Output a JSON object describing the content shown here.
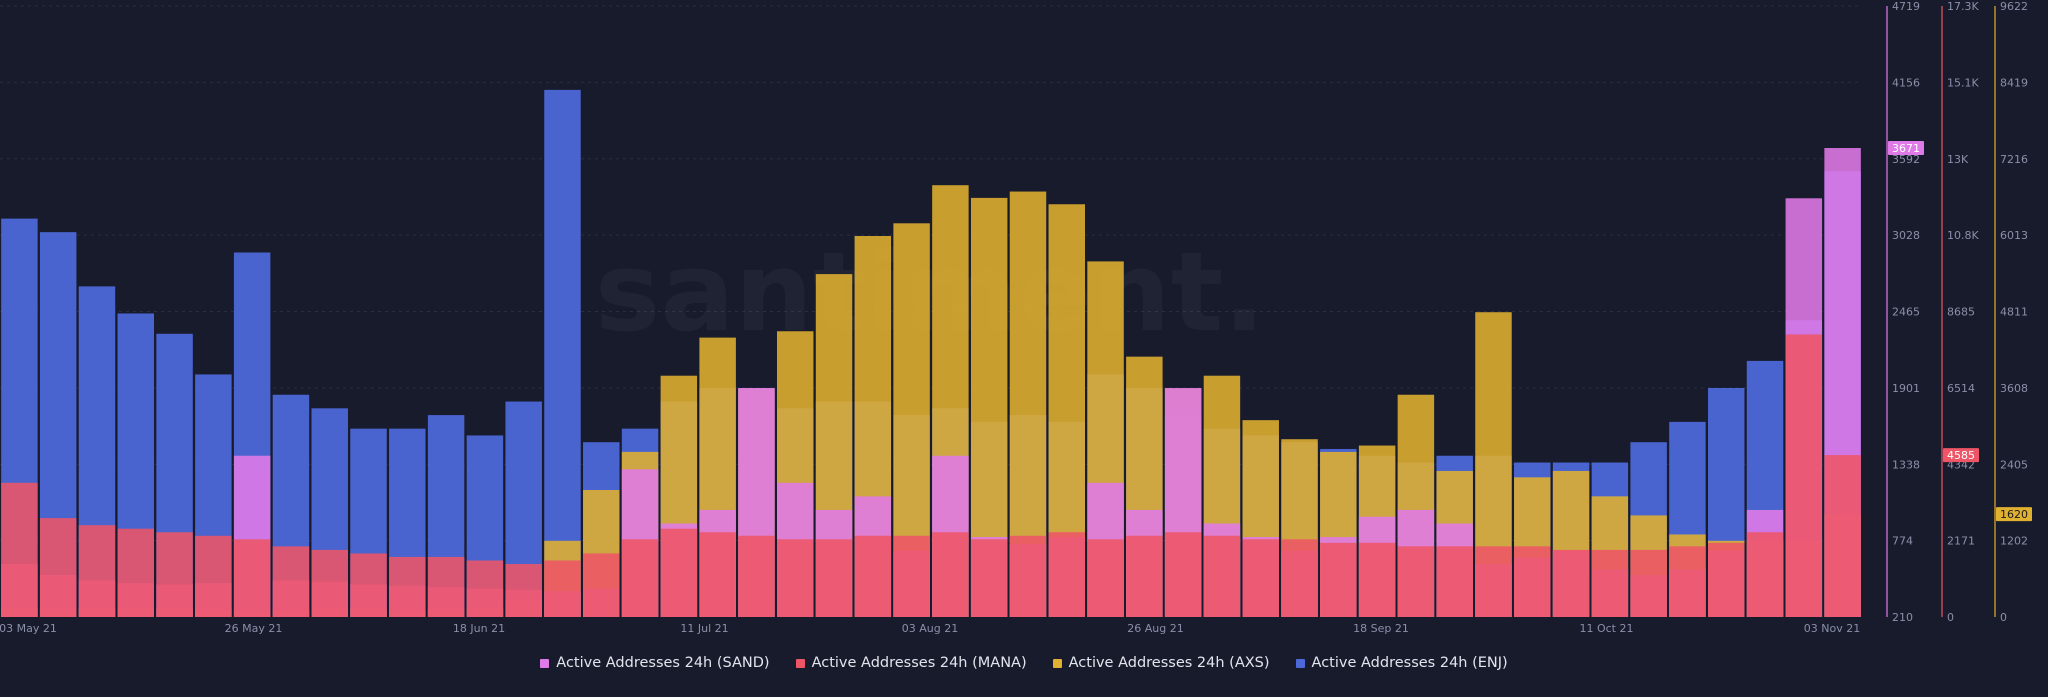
{
  "colors": {
    "background": "#181b2c",
    "grid": "#2a2e42",
    "sand": "#e07ae8",
    "mana": "#ee5566",
    "axs": "#e0b030",
    "enj": "#4d68d8"
  },
  "watermark": "santiment.",
  "chart_data": {
    "type": "bar",
    "stacked": false,
    "x_ticks": [
      "03 May 21",
      "26 May 21",
      "18 Jun 21",
      "11 Jul 21",
      "03 Aug 21",
      "26 Aug 21",
      "18 Sep 21",
      "11 Oct 21",
      "03 Nov 21"
    ],
    "x": [
      "05-01",
      "05-05",
      "05-09",
      "05-13",
      "05-17",
      "05-21",
      "05-25",
      "05-29",
      "06-02",
      "06-06",
      "06-10",
      "06-14",
      "06-18",
      "06-22",
      "06-26",
      "06-30",
      "07-04",
      "07-08",
      "07-12",
      "07-16",
      "07-20",
      "07-24",
      "07-28",
      "08-01",
      "08-05",
      "08-09",
      "08-13",
      "08-17",
      "08-21",
      "08-25",
      "08-29",
      "09-02",
      "09-06",
      "09-10",
      "09-14",
      "09-18",
      "09-22",
      "09-26",
      "09-30",
      "10-04",
      "10-08",
      "10-12",
      "10-16",
      "10-20",
      "10-24",
      "10-28",
      "11-01",
      "11-04"
    ],
    "axes": [
      {
        "id": "sand",
        "ticks": [
          "4719",
          "4156",
          "3592",
          "3028",
          "2465",
          "1901",
          "1338",
          "774",
          "210"
        ],
        "ylim": [
          210,
          4719
        ],
        "current_value": "3671"
      },
      {
        "id": "mana",
        "ticks": [
          "17.3K",
          "15.1K",
          "13K",
          "10.8K",
          "8685",
          "6514",
          "4342",
          "2171",
          "0"
        ],
        "ylim": [
          0,
          17300
        ],
        "current_value": "4585"
      },
      {
        "id": "axs",
        "ticks": [
          "9622",
          "8419",
          "7216",
          "6013",
          "4811",
          "3608",
          "2405",
          "1202",
          "0"
        ],
        "ylim": [
          0,
          9622
        ],
        "current_value": "1620"
      }
    ],
    "series": [
      {
        "name": "Active Addresses 24h (SAND)",
        "axis": "sand",
        "values": [
          600,
          520,
          480,
          460,
          450,
          460,
          1400,
          480,
          470,
          450,
          440,
          430,
          420,
          410,
          400,
          420,
          1300,
          900,
          1000,
          1900,
          1200,
          1000,
          1100,
          700,
          1400,
          800,
          750,
          800,
          1200,
          1000,
          1900,
          900,
          800,
          700,
          800,
          950,
          1000,
          900,
          600,
          650,
          700,
          560,
          520,
          560,
          700,
          1000,
          3300,
          3671
        ]
      },
      {
        "name": "Active Addresses 24h (MANA)",
        "axis": "mana",
        "values": [
          3800,
          2800,
          2600,
          2500,
          2400,
          2300,
          2200,
          2000,
          1900,
          1800,
          1700,
          1700,
          1600,
          1500,
          1600,
          1800,
          2200,
          2500,
          2400,
          2300,
          2200,
          2200,
          2300,
          2300,
          2400,
          2200,
          2300,
          2400,
          2200,
          2300,
          2400,
          2300,
          2200,
          2200,
          2100,
          2100,
          2000,
          2000,
          2000,
          2000,
          1900,
          1900,
          1900,
          2000,
          2100,
          2400,
          8000,
          4585
        ]
      },
      {
        "name": "Active Addresses 24h (AXS)",
        "axis": "axs",
        "values": [
          150,
          120,
          130,
          140,
          130,
          120,
          100,
          110,
          140,
          130,
          100,
          120,
          150,
          250,
          1200,
          2000,
          2600,
          3800,
          4400,
          3600,
          4500,
          5400,
          6000,
          6200,
          6800,
          6600,
          6700,
          6500,
          5600,
          4100,
          3600,
          3800,
          3100,
          2800,
          2600,
          2700,
          3500,
          2300,
          4800,
          2200,
          2300,
          1900,
          1600,
          1300,
          1200,
          1200,
          1200,
          1620
        ]
      },
      {
        "name": "Active Addresses 24h (ENJ)",
        "axis": "enj",
        "values": [
          3150,
          3050,
          2650,
          2450,
          2300,
          2000,
          2900,
          1850,
          1750,
          1600,
          1600,
          1700,
          1550,
          1800,
          4100,
          1500,
          1600,
          1800,
          1900,
          1900,
          1750,
          1800,
          1800,
          1700,
          1750,
          1650,
          1700,
          1650,
          2000,
          1900,
          1700,
          1600,
          1550,
          1500,
          1450,
          1400,
          1350,
          1400,
          1400,
          1350,
          1350,
          1350,
          1500,
          1650,
          1900,
          2100,
          2400,
          3500
        ]
      }
    ],
    "legend_position": "bottom-center",
    "grid": true
  }
}
